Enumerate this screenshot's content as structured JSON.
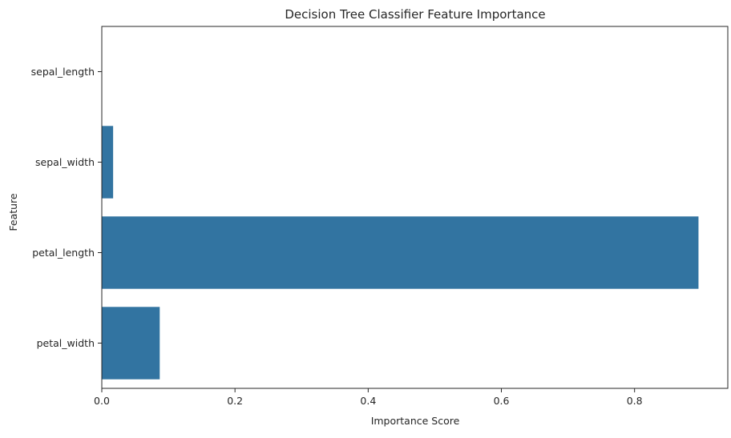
{
  "chart_data": {
    "type": "bar",
    "orientation": "horizontal",
    "title": "Decision Tree Classifier Feature Importance",
    "xlabel": "Importance Score",
    "ylabel": "Feature",
    "categories": [
      "sepal_length",
      "sepal_width",
      "petal_length",
      "petal_width"
    ],
    "values": [
      0.0,
      0.017,
      0.896,
      0.087
    ],
    "xlim": [
      0,
      0.94
    ],
    "xticks": [
      "0.0",
      "0.2",
      "0.4",
      "0.6",
      "0.8"
    ],
    "xtick_values": [
      0,
      0.2,
      0.4,
      0.6,
      0.8
    ],
    "grid": false,
    "legend": "none",
    "bar_color": "#3274a1"
  }
}
